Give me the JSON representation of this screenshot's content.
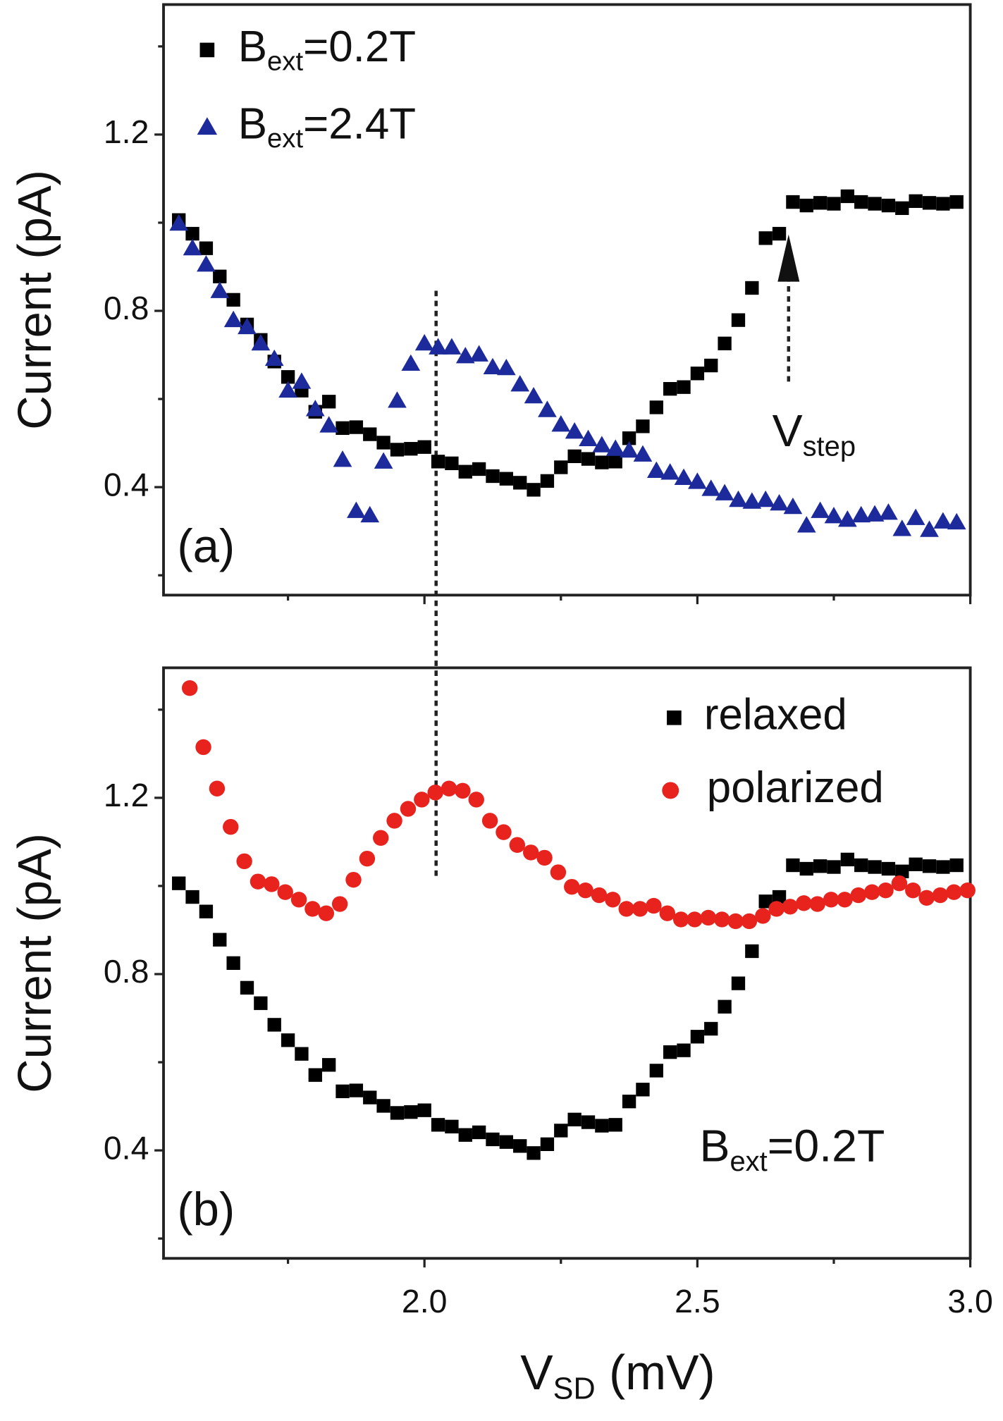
{
  "chart_data": [
    {
      "type": "scatter",
      "panel_label": "(a)",
      "y_label": "Current (pA)",
      "annotation": [
        "V",
        "step"
      ],
      "xlim": [
        1.522,
        3.0
      ],
      "ylim": [
        0.155,
        1.495
      ],
      "yticks": [
        0.4,
        0.8,
        1.2
      ],
      "yticks_minor": [
        0.2,
        0.6,
        1.0,
        1.4
      ],
      "xticks": [
        2.0,
        2.5,
        3.0
      ],
      "xticks_minor": [
        1.75,
        2.25,
        2.75
      ],
      "series": [
        {
          "name": [
            "B",
            "ext",
            "=0.2T"
          ],
          "color": "#000000",
          "marker": "square",
          "x": [
            1.55,
            1.575,
            1.6,
            1.625,
            1.65,
            1.675,
            1.7,
            1.725,
            1.75,
            1.775,
            1.8,
            1.825,
            1.85,
            1.875,
            1.9,
            1.925,
            1.95,
            1.975,
            2.0,
            2.025,
            2.05,
            2.075,
            2.1,
            2.125,
            2.15,
            2.175,
            2.2,
            2.225,
            2.25,
            2.275,
            2.3,
            2.325,
            2.35,
            2.375,
            2.4,
            2.425,
            2.45,
            2.475,
            2.5,
            2.525,
            2.55,
            2.575,
            2.6,
            2.625,
            2.65,
            2.675,
            2.7,
            2.725,
            2.75,
            2.775,
            2.8,
            2.825,
            2.85,
            2.875,
            2.9,
            2.925,
            2.95,
            2.975
          ],
          "values": [
            1.006,
            0.975,
            0.942,
            0.878,
            0.825,
            0.769,
            0.734,
            0.685,
            0.65,
            0.619,
            0.571,
            0.594,
            0.534,
            0.536,
            0.52,
            0.501,
            0.485,
            0.487,
            0.491,
            0.458,
            0.454,
            0.435,
            0.441,
            0.425,
            0.419,
            0.41,
            0.394,
            0.414,
            0.445,
            0.47,
            0.464,
            0.456,
            0.458,
            0.511,
            0.538,
            0.581,
            0.623,
            0.627,
            0.658,
            0.676,
            0.726,
            0.779,
            0.852,
            0.965,
            0.975,
            1.047,
            1.039,
            1.045,
            1.043,
            1.06,
            1.047,
            1.043,
            1.039,
            1.033,
            1.049,
            1.045,
            1.043,
            1.047
          ]
        },
        {
          "name": [
            "B",
            "ext",
            "=2.4T"
          ],
          "color": "#1c2a9c",
          "marker": "triangle",
          "x": [
            1.55,
            1.575,
            1.6,
            1.625,
            1.65,
            1.675,
            1.7,
            1.725,
            1.75,
            1.775,
            1.8,
            1.825,
            1.85,
            1.875,
            1.9,
            1.925,
            1.95,
            1.975,
            2.0,
            2.025,
            2.05,
            2.075,
            2.1,
            2.125,
            2.15,
            2.175,
            2.2,
            2.225,
            2.25,
            2.275,
            2.3,
            2.325,
            2.35,
            2.375,
            2.4,
            2.425,
            2.45,
            2.475,
            2.5,
            2.525,
            2.55,
            2.575,
            2.6,
            2.625,
            2.65,
            2.675,
            2.7,
            2.725,
            2.75,
            2.775,
            2.8,
            2.825,
            2.85,
            2.875,
            2.9,
            2.925,
            2.95,
            2.975
          ],
          "values": [
            0.998,
            0.942,
            0.905,
            0.845,
            0.779,
            0.763,
            0.726,
            0.691,
            0.619,
            0.639,
            0.577,
            0.54,
            0.462,
            0.346,
            0.336,
            0.458,
            0.596,
            0.68,
            0.726,
            0.717,
            0.717,
            0.697,
            0.701,
            0.672,
            0.67,
            0.633,
            0.606,
            0.575,
            0.542,
            0.526,
            0.509,
            0.495,
            0.487,
            0.483,
            0.474,
            0.437,
            0.433,
            0.421,
            0.412,
            0.396,
            0.386,
            0.371,
            0.367,
            0.371,
            0.363,
            0.355,
            0.313,
            0.346,
            0.334,
            0.326,
            0.336,
            0.338,
            0.342,
            0.305,
            0.33,
            0.303,
            0.322,
            0.32
          ]
        }
      ]
    },
    {
      "type": "scatter",
      "panel_label": "(b)",
      "y_label": "Current (pA)",
      "x_label": [
        "V",
        "SD",
        " (mV)"
      ],
      "annotation": [
        "B",
        "ext",
        "=0.2T"
      ],
      "xlim": [
        1.522,
        3.0
      ],
      "ylim": [
        0.155,
        1.495
      ],
      "yticks": [
        0.4,
        0.8,
        1.2
      ],
      "yticks_minor": [
        0.2,
        0.6,
        1.0,
        1.4
      ],
      "xticks": [
        {
          "value": 2,
          "label": "2.0"
        },
        2.5,
        {
          "value": 3,
          "label": "3.0"
        }
      ],
      "xticks_minor": [
        1.75,
        2.25,
        2.75
      ],
      "series": [
        {
          "name": "relaxed",
          "color": "#000000",
          "marker": "square",
          "x": [
            1.55,
            1.575,
            1.6,
            1.625,
            1.65,
            1.675,
            1.7,
            1.725,
            1.75,
            1.775,
            1.8,
            1.825,
            1.85,
            1.875,
            1.9,
            1.925,
            1.95,
            1.975,
            2.0,
            2.025,
            2.05,
            2.075,
            2.1,
            2.125,
            2.15,
            2.175,
            2.2,
            2.225,
            2.25,
            2.275,
            2.3,
            2.325,
            2.35,
            2.375,
            2.4,
            2.425,
            2.45,
            2.475,
            2.5,
            2.525,
            2.55,
            2.575,
            2.6,
            2.625,
            2.65,
            2.675,
            2.7,
            2.725,
            2.75,
            2.775,
            2.8,
            2.825,
            2.85,
            2.875,
            2.9,
            2.925,
            2.95,
            2.975
          ],
          "values": [
            1.006,
            0.975,
            0.942,
            0.878,
            0.825,
            0.769,
            0.734,
            0.685,
            0.65,
            0.619,
            0.571,
            0.594,
            0.534,
            0.536,
            0.52,
            0.501,
            0.485,
            0.487,
            0.491,
            0.458,
            0.454,
            0.435,
            0.441,
            0.425,
            0.419,
            0.41,
            0.394,
            0.414,
            0.445,
            0.47,
            0.464,
            0.456,
            0.458,
            0.511,
            0.538,
            0.581,
            0.623,
            0.627,
            0.658,
            0.676,
            0.726,
            0.779,
            0.852,
            0.965,
            0.975,
            1.047,
            1.039,
            1.045,
            1.043,
            1.06,
            1.047,
            1.043,
            1.039,
            1.033,
            1.049,
            1.045,
            1.043,
            1.047
          ]
        },
        {
          "name": "polarized",
          "color": "#e8231e",
          "marker": "circle",
          "x": [
            1.57,
            1.595,
            1.62,
            1.645,
            1.67,
            1.695,
            1.72,
            1.745,
            1.77,
            1.795,
            1.82,
            1.845,
            1.87,
            1.895,
            1.92,
            1.945,
            1.97,
            1.995,
            2.02,
            2.045,
            2.07,
            2.095,
            2.12,
            2.145,
            2.17,
            2.195,
            2.22,
            2.245,
            2.27,
            2.295,
            2.32,
            2.345,
            2.37,
            2.395,
            2.42,
            2.445,
            2.47,
            2.495,
            2.52,
            2.545,
            2.57,
            2.595,
            2.62,
            2.645,
            2.67,
            2.695,
            2.72,
            2.745,
            2.77,
            2.795,
            2.82,
            2.845,
            2.87,
            2.895,
            2.92,
            2.945,
            2.97,
            2.995
          ],
          "values": [
            1.449,
            1.315,
            1.221,
            1.134,
            1.056,
            1.01,
            1.004,
            0.986,
            0.969,
            0.948,
            0.938,
            0.959,
            1.014,
            1.062,
            1.109,
            1.148,
            1.175,
            1.196,
            1.212,
            1.221,
            1.216,
            1.196,
            1.148,
            1.122,
            1.093,
            1.076,
            1.064,
            1.031,
            0.998,
            0.99,
            0.979,
            0.969,
            0.948,
            0.948,
            0.955,
            0.938,
            0.924,
            0.924,
            0.928,
            0.924,
            0.92,
            0.92,
            0.932,
            0.948,
            0.953,
            0.961,
            0.959,
            0.969,
            0.969,
            0.979,
            0.986,
            0.99,
            1.006,
            0.99,
            0.973,
            0.979,
            0.986,
            0.99
          ]
        }
      ]
    }
  ]
}
